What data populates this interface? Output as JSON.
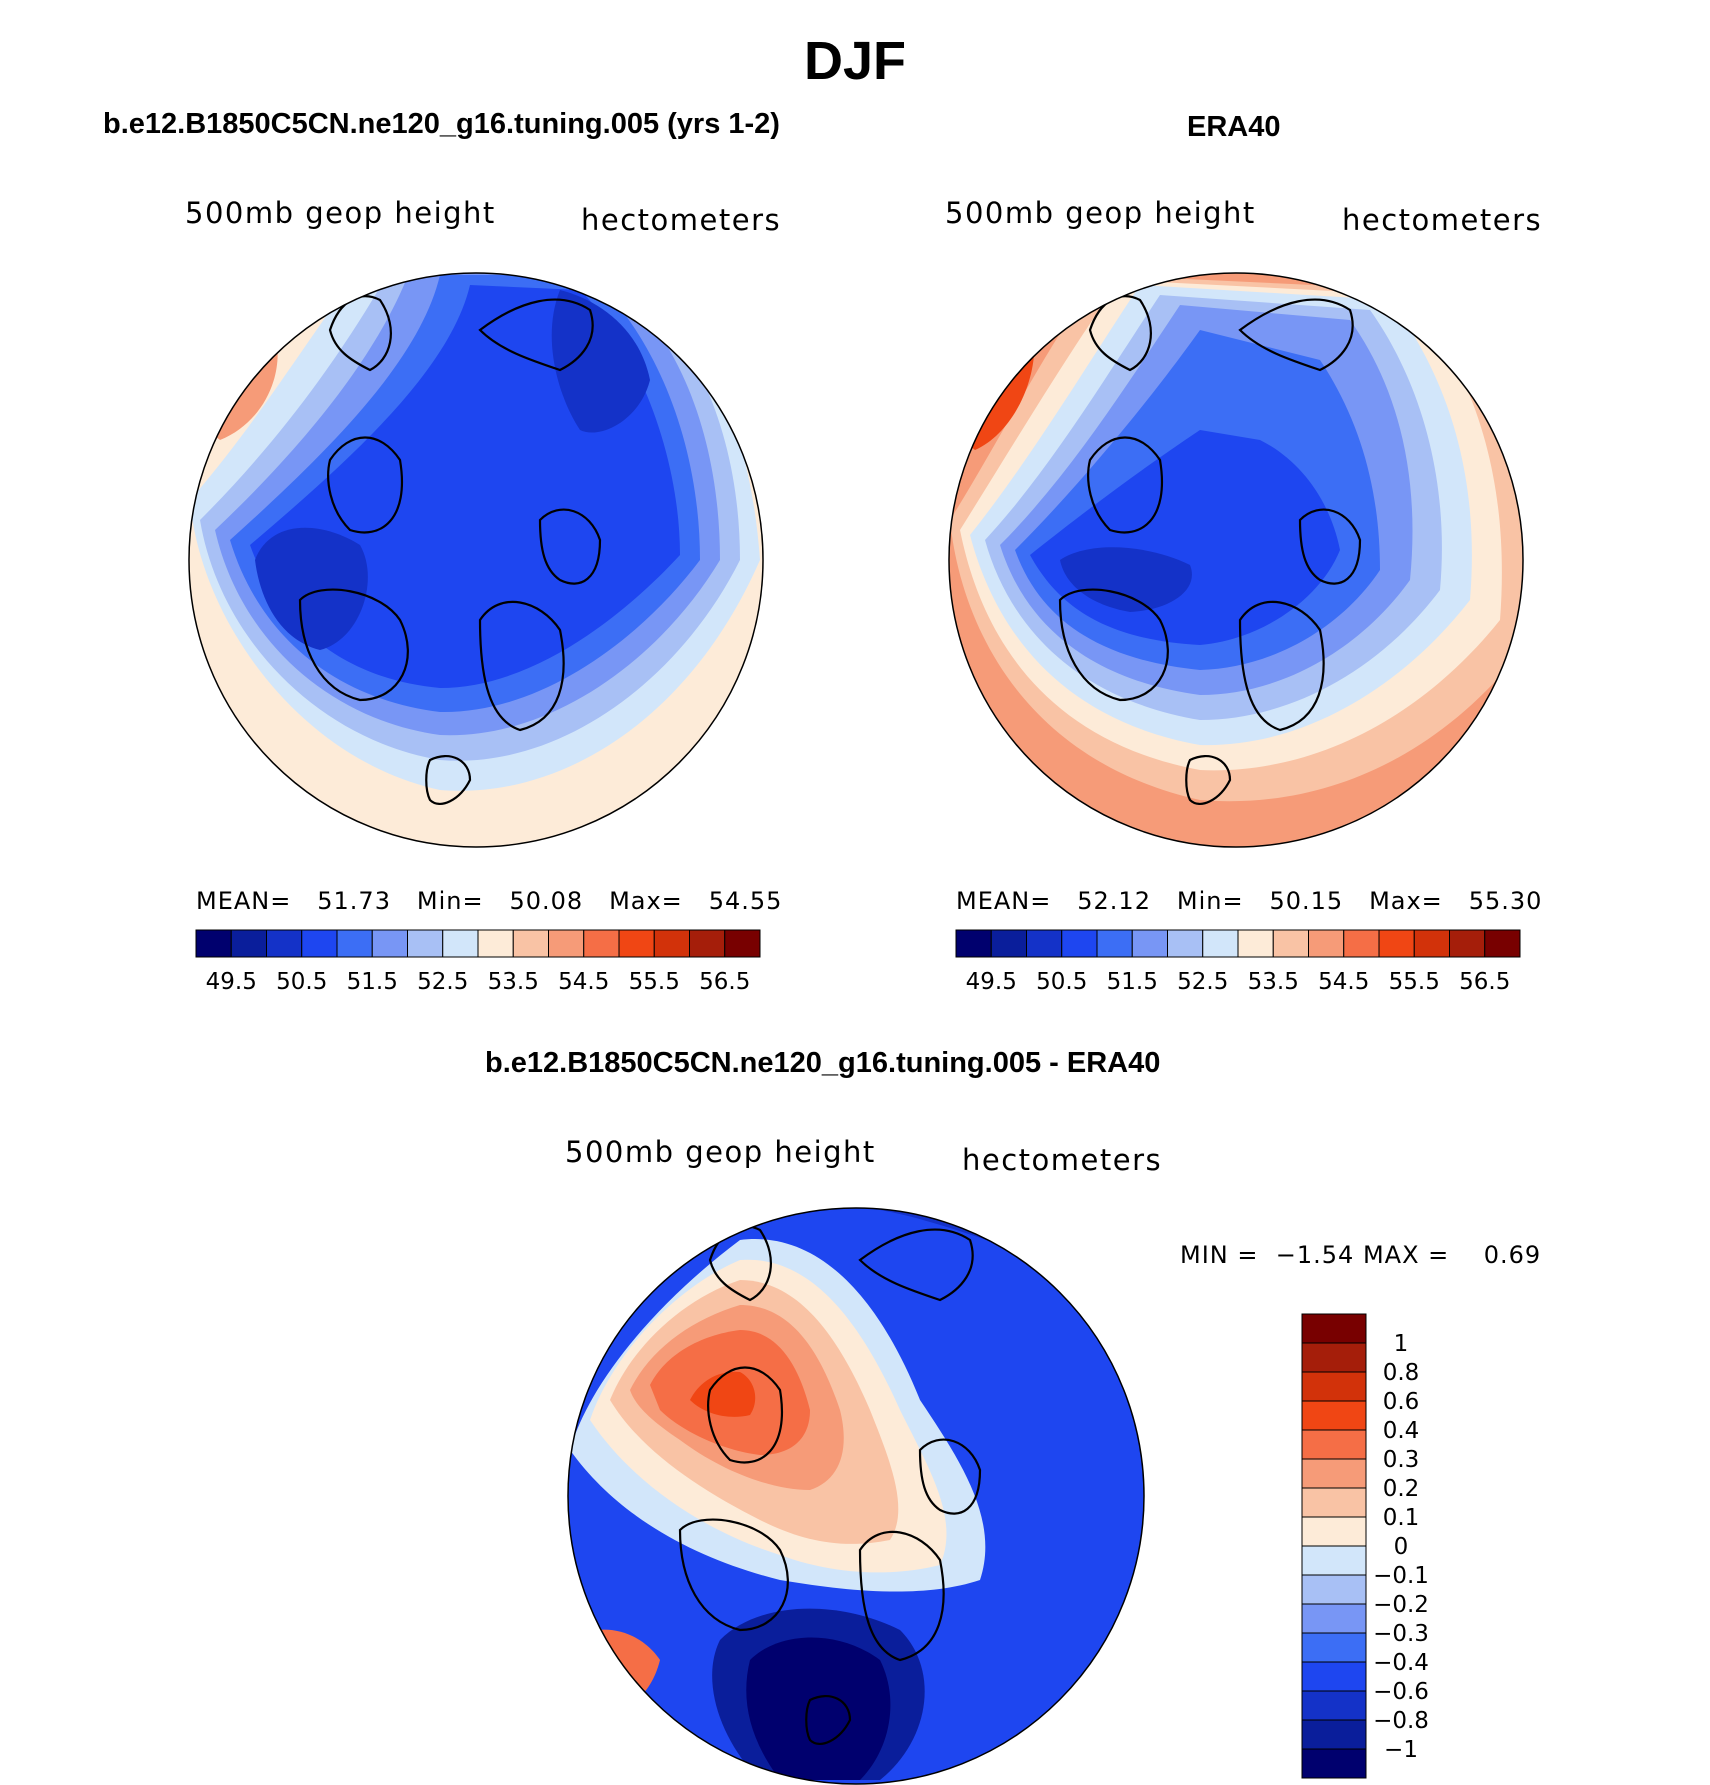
{
  "figure": {
    "title": "DJF",
    "colors": {
      "abs_scale": [
        "#00006e",
        "#0a1e9b",
        "#1432c8",
        "#1e46f0",
        "#3c6ef5",
        "#7896f5",
        "#a8c0f5",
        "#d2e6fa",
        "#fdebd8",
        "#f9c3a5",
        "#f69b78",
        "#f56e46",
        "#f04614",
        "#d2320a",
        "#a51e0a",
        "#780000"
      ],
      "diff_scale": [
        "#00006e",
        "#0a1e9b",
        "#1432c8",
        "#1e46f0",
        "#3c6ef5",
        "#7896f5",
        "#a8c0f5",
        "#d2e6fa",
        "#fdebd8",
        "#f9c3a5",
        "#f69b78",
        "#f56e46",
        "#f04614",
        "#d2320a",
        "#a51e0a",
        "#780000"
      ]
    },
    "panels": [
      {
        "title": "b.e12.B1850C5CN.ne120_g16.tuning.005 (yrs 1-2)",
        "variable": "500mb geop height",
        "units": "hectometers",
        "stats": {
          "mean_label": "MEAN=",
          "mean": "51.73",
          "min_label": "Min=",
          "min": "50.08",
          "max_label": "Max=",
          "max": "54.55"
        },
        "ticks": [
          "49.5",
          "50.5",
          "51.5",
          "52.5",
          "53.5",
          "54.5",
          "55.5",
          "56.5"
        ]
      },
      {
        "title": "ERA40",
        "variable": "500mb geop height",
        "units": "hectometers",
        "stats": {
          "mean_label": "MEAN=",
          "mean": "52.12",
          "min_label": "Min=",
          "min": "50.15",
          "max_label": "Max=",
          "max": "55.30"
        },
        "ticks": [
          "49.5",
          "50.5",
          "51.5",
          "52.5",
          "53.5",
          "54.5",
          "55.5",
          "56.5"
        ]
      },
      {
        "title": "b.e12.B1850C5CN.ne120_g16.tuning.005 - ERA40",
        "variable": "500mb geop height",
        "units": "hectometers",
        "stats": {
          "min_label": "MIN =",
          "min": "−1.54",
          "max_label": "MAX =",
          "max": "0.69"
        },
        "ticks": [
          "1",
          "0.8",
          "0.6",
          "0.4",
          "0.3",
          "0.2",
          "0.1",
          "0",
          "−0.1",
          "−0.2",
          "−0.3",
          "−0.4",
          "−0.6",
          "−0.8",
          "−1"
        ]
      }
    ]
  }
}
